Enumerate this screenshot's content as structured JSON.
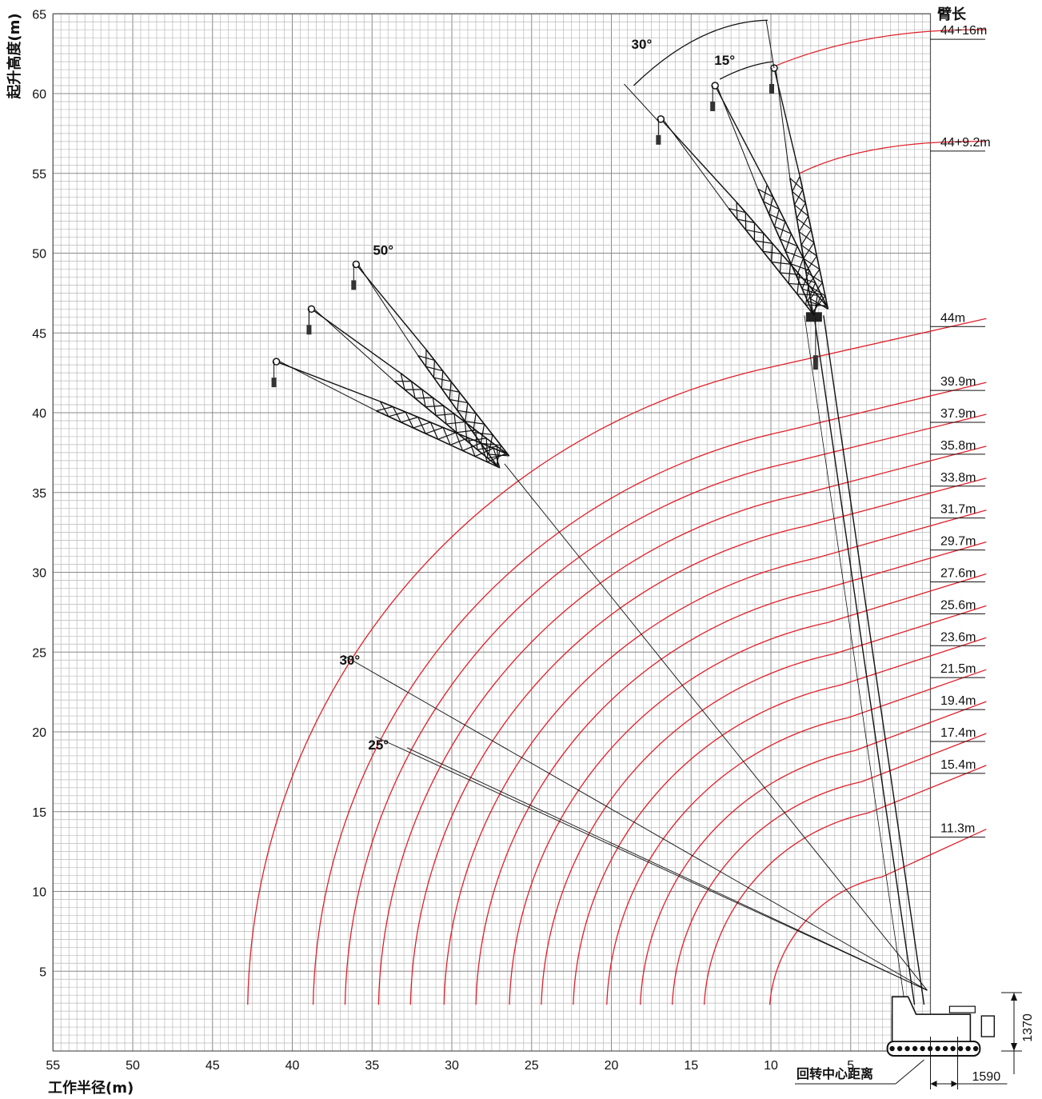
{
  "chart_data": {
    "type": "line",
    "xlabel": "工作半径(m)",
    "ylabel": "起升高度(m)",
    "xlim": [
      55,
      0
    ],
    "ylim": [
      0,
      65
    ],
    "x_ticks": [
      55,
      50,
      45,
      40,
      35,
      30,
      25,
      20,
      15,
      10,
      5
    ],
    "y_ticks": [
      5,
      10,
      15,
      20,
      25,
      30,
      35,
      40,
      45,
      50,
      55,
      60,
      65
    ],
    "grid": true,
    "legend_title": "臂长",
    "series": [
      {
        "name": "11.3m",
        "label_y": 13.5,
        "reach": 9.8
      },
      {
        "name": "15.4m",
        "label_y": 17.5,
        "reach": 13.9
      },
      {
        "name": "17.4m",
        "label_y": 19.5,
        "reach": 15.9
      },
      {
        "name": "19.4m",
        "label_y": 21.5,
        "reach": 17.9
      },
      {
        "name": "21.5m",
        "label_y": 23.5,
        "reach": 20.0
      },
      {
        "name": "23.6m",
        "label_y": 25.5,
        "reach": 22.1
      },
      {
        "name": "25.6m",
        "label_y": 27.5,
        "reach": 24.1
      },
      {
        "name": "27.6m",
        "label_y": 29.5,
        "reach": 26.1
      },
      {
        "name": "29.7m",
        "label_y": 31.5,
        "reach": 28.2
      },
      {
        "name": "31.7m",
        "label_y": 33.5,
        "reach": 30.2
      },
      {
        "name": "33.8m",
        "label_y": 35.5,
        "reach": 32.3
      },
      {
        "name": "35.8m",
        "label_y": 37.5,
        "reach": 34.3
      },
      {
        "name": "37.9m",
        "label_y": 39.5,
        "reach": 36.4
      },
      {
        "name": "39.9m",
        "label_y": 41.5,
        "reach": 38.4
      },
      {
        "name": "44m",
        "label_y": 45.5,
        "reach": 42.5
      },
      {
        "name": "44+9.2m",
        "label_y": 56.5
      },
      {
        "name": "44+16m",
        "label_y": 63.5
      }
    ],
    "annotations": [
      {
        "text": "30°",
        "x": 36.4,
        "y": 24.2
      },
      {
        "text": "25°",
        "x": 34.6,
        "y": 18.9
      },
      {
        "text": "50°",
        "x": 34.3,
        "y": 49.9
      },
      {
        "text": "30°",
        "x": 18.1,
        "y": 62.8
      },
      {
        "text": "15°",
        "x": 12.9,
        "y": 61.8
      }
    ],
    "dimensions": [
      {
        "text": "1370"
      },
      {
        "text": "1590"
      },
      {
        "text": "回转中心距离"
      }
    ]
  }
}
